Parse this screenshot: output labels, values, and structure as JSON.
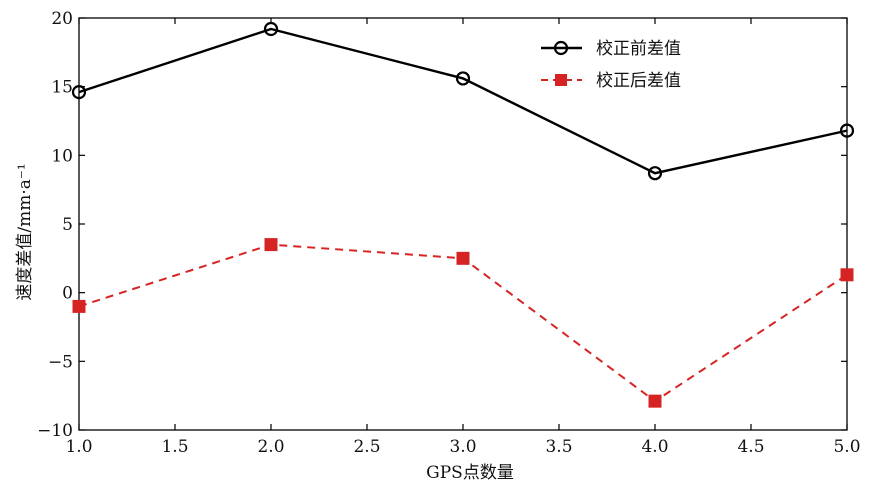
{
  "chart_data": {
    "type": "line",
    "x": [
      1.0,
      2.0,
      3.0,
      4.0,
      5.0
    ],
    "series": [
      {
        "name": "校正前差值",
        "values": [
          14.6,
          19.2,
          15.6,
          8.7,
          11.8
        ],
        "color": "#000000",
        "marker": "circle",
        "line_style": "solid"
      },
      {
        "name": "校正后差值",
        "values": [
          -1.0,
          3.5,
          2.5,
          -7.9,
          1.3
        ],
        "color": "#d62424",
        "marker": "square",
        "line_style": "dashed"
      }
    ],
    "xlabel": "GPS点数量",
    "ylabel": "速度差值/mm·a⁻¹",
    "xlim": [
      1.0,
      5.0
    ],
    "ylim": [
      -10,
      20
    ],
    "xticks": [
      1.0,
      1.5,
      2.0,
      2.5,
      3.0,
      3.5,
      4.0,
      4.5,
      5.0
    ],
    "xtick_labels": [
      "1.0",
      "1.5",
      "2.0",
      "2.5",
      "3.0",
      "3.5",
      "4.0",
      "4.5",
      "5.0"
    ],
    "yticks": [
      -10,
      -5,
      0,
      5,
      10,
      15,
      20
    ],
    "ytick_labels": [
      "−10",
      "−5",
      "0",
      "5",
      "10",
      "15",
      "20"
    ],
    "grid": false,
    "legend_position": "top-right"
  }
}
